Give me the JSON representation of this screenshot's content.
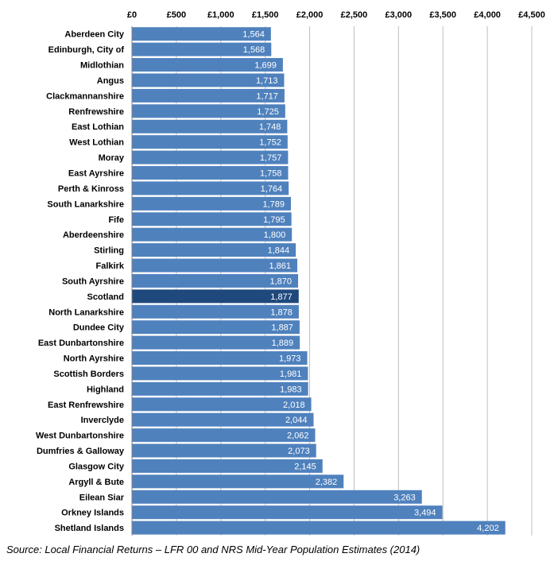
{
  "source_note": "Source: Local Financial Returns – LFR 00 and NRS Mid-Year Population Estimates (2014)",
  "colors": {
    "bar": "#4f81bd",
    "highlight": "#1f497d",
    "grid": "#bfbfbf",
    "value_text": "#ffffff"
  },
  "chart_data": {
    "type": "bar",
    "orientation": "horizontal",
    "title": "",
    "xlabel": "",
    "ylabel": "",
    "xlim": [
      0,
      4500
    ],
    "x_ticks": [
      0,
      500,
      1000,
      1500,
      2000,
      2500,
      3000,
      3500,
      4000,
      4500
    ],
    "x_tick_labels": [
      "£0",
      "£500",
      "£1,000",
      "£1,500",
      "£2,000",
      "£2,500",
      "£3,000",
      "£3,500",
      "£4,000",
      "£4,500"
    ],
    "axis_position": "top",
    "grid": true,
    "highlight_category": "Scotland",
    "categories": [
      "Aberdeen City",
      "Edinburgh, City of",
      "Midlothian",
      "Angus",
      "Clackmannanshire",
      "Renfrewshire",
      "East Lothian",
      "West Lothian",
      "Moray",
      "East Ayrshire",
      "Perth & Kinross",
      "South Lanarkshire",
      "Fife",
      "Aberdeenshire",
      "Stirling",
      "Falkirk",
      "South Ayrshire",
      "Scotland",
      "North Lanarkshire",
      "Dundee City",
      "East Dunbartonshire",
      "North Ayrshire",
      "Scottish Borders",
      "Highland",
      "East Renfrewshire",
      "Inverclyde",
      "West Dunbartonshire",
      "Dumfries & Galloway",
      "Glasgow City",
      "Argyll & Bute",
      "Eilean Siar",
      "Orkney Islands",
      "Shetland Islands"
    ],
    "values": [
      1564,
      1568,
      1699,
      1713,
      1717,
      1725,
      1748,
      1752,
      1757,
      1758,
      1764,
      1789,
      1795,
      1800,
      1844,
      1861,
      1870,
      1877,
      1878,
      1887,
      1889,
      1973,
      1981,
      1983,
      2018,
      2044,
      2062,
      2073,
      2145,
      2382,
      3263,
      3494,
      4202
    ],
    "value_labels": [
      "1,564",
      "1,568",
      "1,699",
      "1,713",
      "1,717",
      "1,725",
      "1,748",
      "1,752",
      "1,757",
      "1,758",
      "1,764",
      "1,789",
      "1,795",
      "1,800",
      "1,844",
      "1,861",
      "1,870",
      "1,877",
      "1,878",
      "1,887",
      "1,889",
      "1,973",
      "1,981",
      "1,983",
      "2,018",
      "2,044",
      "2,062",
      "2,073",
      "2,145",
      "2,382",
      "3,263",
      "3,494",
      "4,202"
    ]
  }
}
